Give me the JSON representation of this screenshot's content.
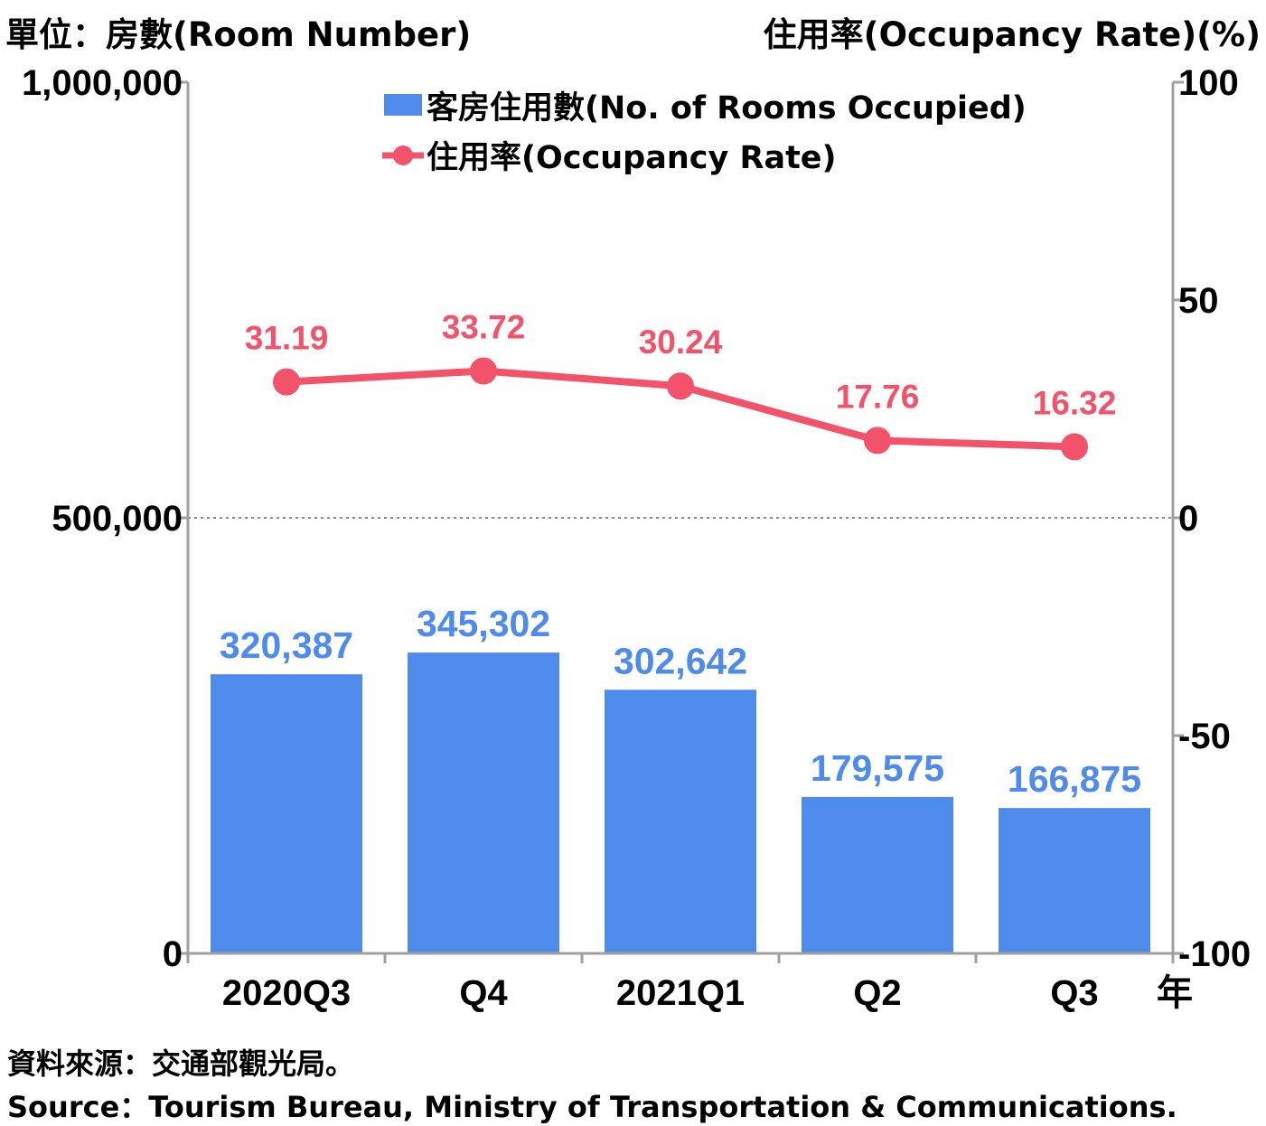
{
  "header": {
    "left_axis_unit": "單位：房數(Room Number)",
    "right_axis_unit": "住用率(Occupancy Rate)(%)"
  },
  "footer": {
    "source_zh": "資料來源：交通部觀光局。",
    "source_en": "Source：Tourism Bureau, Ministry of Transportation & Communications."
  },
  "colors": {
    "bar": "#4f8bea",
    "line": "#f2536a",
    "axis": "#a0a0a0"
  },
  "chart_data": {
    "type": "bar",
    "categories": [
      "2020Q3",
      "Q4",
      "2021Q1",
      "Q2",
      "Q3"
    ],
    "x_unit": "年",
    "series": [
      {
        "name": "客房住用數(No. of Rooms Occupied)",
        "type": "bar",
        "axis": "left",
        "values": [
          320387,
          345302,
          302642,
          179575,
          166875
        ],
        "value_labels": [
          "320,387",
          "345,302",
          "302,642",
          "179,575",
          "166,875"
        ]
      },
      {
        "name": "住用率(Occupancy Rate)",
        "type": "line",
        "axis": "right",
        "values": [
          31.19,
          33.72,
          30.24,
          17.76,
          16.32
        ],
        "value_labels": [
          "31.19",
          "33.72",
          "30.24",
          "17.76",
          "16.32"
        ]
      }
    ],
    "y_left": {
      "label": "單位：房數(Room Number)",
      "ylim": [
        0,
        1000000
      ],
      "ticks": [
        0,
        500000,
        1000000
      ],
      "tick_labels": [
        "0",
        "500,000",
        "1,000,000"
      ]
    },
    "y_right": {
      "label": "住用率(Occupancy Rate)(%)",
      "ylim": [
        -100,
        100
      ],
      "ticks": [
        -100,
        -50,
        0,
        50,
        100
      ],
      "tick_labels": [
        "-100",
        "-50",
        "0",
        "50",
        "100"
      ]
    },
    "gridlines": "dotted line at 500,000 / 0%",
    "legend_position": "top-center"
  }
}
